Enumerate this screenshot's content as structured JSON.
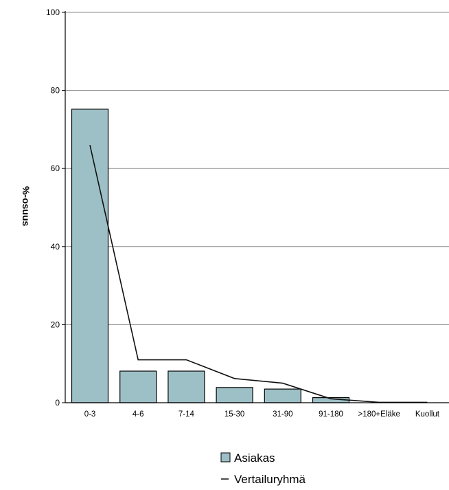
{
  "chart_data": {
    "type": "bar",
    "ylabel": "%-osuus",
    "xlabel": "",
    "title": "",
    "ylim": [
      0,
      100
    ],
    "yticks": [
      "0",
      "20",
      "40",
      "60",
      "80",
      "100"
    ],
    "categories": [
      "0-3",
      "4-6",
      "7-14",
      "15-30",
      "31-90",
      "91-180",
      ">180+Eläke",
      "Kuollut"
    ],
    "series": [
      {
        "name": "Asiakas",
        "type": "bar",
        "color": "#9dbfc6",
        "values": [
          75.2,
          8.1,
          8.1,
          3.9,
          3.5,
          1.3,
          0,
          0
        ]
      },
      {
        "name": "Vertailuryhmä",
        "type": "line",
        "color": "#111111",
        "values": [
          66,
          11,
          11,
          6.2,
          5,
          1,
          0.1,
          0.1
        ]
      }
    ],
    "grid": true,
    "legend_position": "bottom"
  }
}
